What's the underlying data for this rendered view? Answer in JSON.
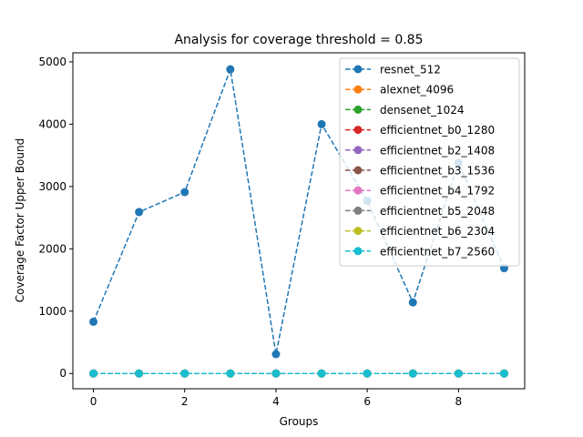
{
  "chart_data": {
    "type": "line",
    "title": "Analysis for coverage threshold = 0.85",
    "xlabel": "Groups",
    "ylabel": "Coverage Factor Upper Bound",
    "xlim": [
      -0.45,
      9.45
    ],
    "ylim": [
      -245,
      5145
    ],
    "xticks": [
      0,
      2,
      4,
      6,
      8
    ],
    "yticks": [
      0,
      1000,
      2000,
      3000,
      4000,
      5000
    ],
    "grid": false,
    "legend_position": "top-right",
    "x": [
      0,
      1,
      2,
      3,
      4,
      5,
      6,
      7,
      8,
      9
    ],
    "series": [
      {
        "name": "resnet_512",
        "color": "#1f77b4",
        "values": [
          830,
          2590,
          2910,
          4880,
          310,
          4000,
          2770,
          1140,
          3380,
          1690
        ]
      },
      {
        "name": "alexnet_4096",
        "color": "#ff7f0e",
        "values": [
          0,
          0,
          0,
          0,
          0,
          0,
          0,
          0,
          0,
          0
        ]
      },
      {
        "name": "densenet_1024",
        "color": "#2ca02c",
        "values": [
          0,
          0,
          0,
          0,
          0,
          0,
          0,
          0,
          0,
          0
        ]
      },
      {
        "name": "efficientnet_b0_1280",
        "color": "#d62728",
        "values": [
          0,
          0,
          0,
          0,
          0,
          0,
          0,
          0,
          0,
          0
        ]
      },
      {
        "name": "efficientnet_b2_1408",
        "color": "#9467bd",
        "values": [
          0,
          0,
          0,
          0,
          0,
          0,
          0,
          0,
          0,
          0
        ]
      },
      {
        "name": "efficientnet_b3_1536",
        "color": "#8c564b",
        "values": [
          0,
          0,
          0,
          0,
          0,
          0,
          0,
          0,
          0,
          0
        ]
      },
      {
        "name": "efficientnet_b4_1792",
        "color": "#e377c2",
        "values": [
          0,
          0,
          0,
          0,
          0,
          0,
          0,
          0,
          0,
          0
        ]
      },
      {
        "name": "efficientnet_b5_2048",
        "color": "#7f7f7f",
        "values": [
          0,
          0,
          0,
          0,
          0,
          0,
          0,
          0,
          0,
          0
        ]
      },
      {
        "name": "efficientnet_b6_2304",
        "color": "#bcbd22",
        "values": [
          0,
          0,
          0,
          0,
          0,
          0,
          0,
          0,
          0,
          0
        ]
      },
      {
        "name": "efficientnet_b7_2560",
        "color": "#17becf",
        "values": [
          0,
          0,
          0,
          0,
          0,
          0,
          0,
          0,
          0,
          0
        ]
      }
    ]
  }
}
